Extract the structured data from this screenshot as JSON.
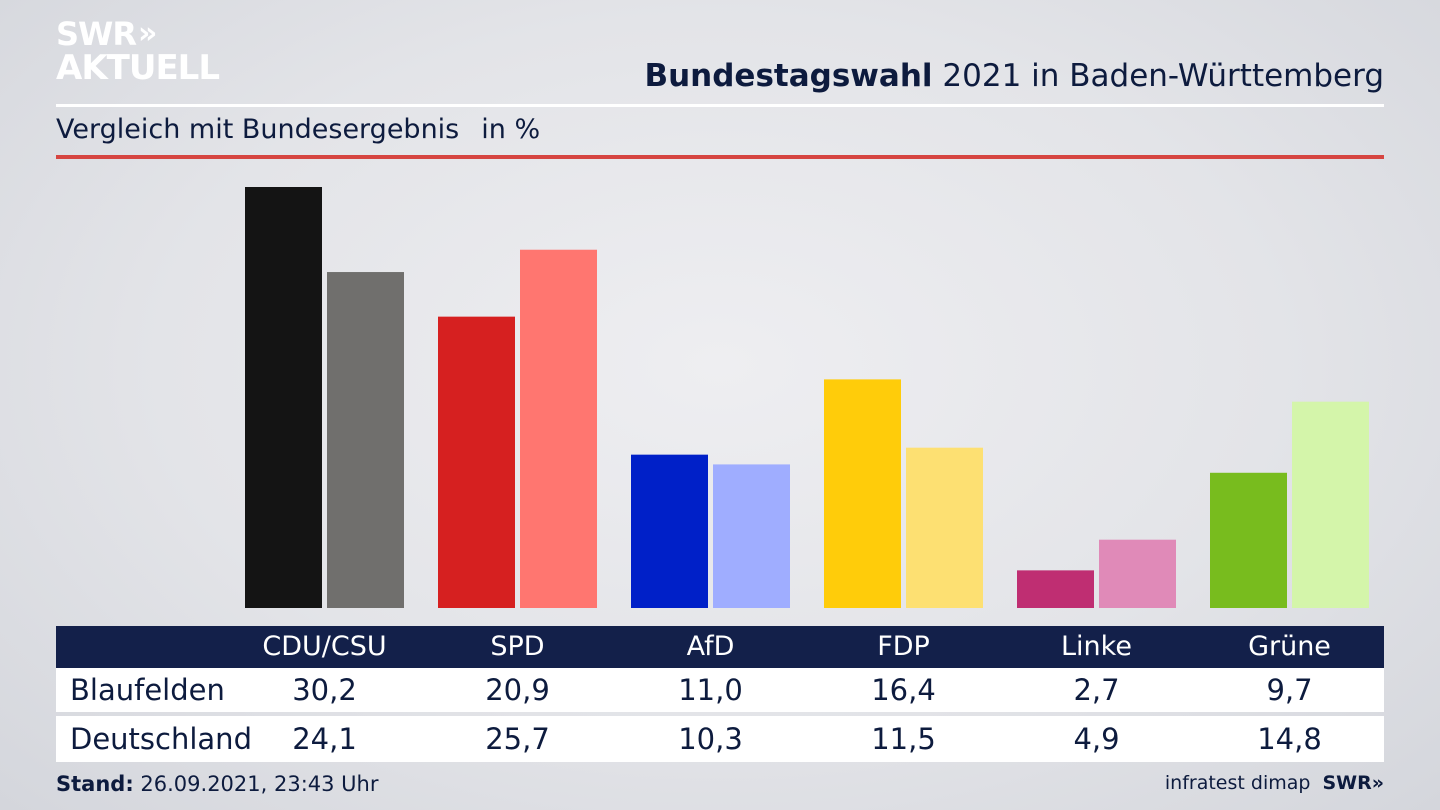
{
  "logo": {
    "line1": "SWR",
    "chevrons": "»",
    "line2": "AKTUELL"
  },
  "header": {
    "title_bold": "Bundestagswahl",
    "title_rest": " 2021 in Baden-Württemberg"
  },
  "subtitle": {
    "text": "Vergleich mit Bundesergebnis",
    "unit": "in %"
  },
  "chart_data": {
    "type": "bar",
    "categories": [
      "CDU/CSU",
      "SPD",
      "AfD",
      "FDP",
      "Linke",
      "Grüne"
    ],
    "series": [
      {
        "name": "Blaufelden",
        "values": [
          30.2,
          20.9,
          11.0,
          16.4,
          2.7,
          9.7
        ]
      },
      {
        "name": "Deutschland",
        "values": [
          24.1,
          25.7,
          10.3,
          11.5,
          4.9,
          14.8
        ]
      }
    ],
    "colors_primary": [
      "#141414",
      "#d62020",
      "#0020c8",
      "#ffcc0a",
      "#bf2e72",
      "#78bc1e"
    ],
    "colors_secondary": [
      "#706f6d",
      "#ff7670",
      "#9fadff",
      "#fde072",
      "#e08ab8",
      "#d4f5aa"
    ],
    "ylim": [
      0,
      30.2
    ],
    "grid": false,
    "legend": "table-below"
  },
  "table": {
    "headers": [
      "CDU/CSU",
      "SPD",
      "AfD",
      "FDP",
      "Linke",
      "Grüne"
    ],
    "rows": [
      {
        "label": "Blaufelden",
        "values": [
          "30,2",
          "20,9",
          "11,0",
          "16,4",
          "2,7",
          "9,7"
        ]
      },
      {
        "label": "Deutschland",
        "values": [
          "24,1",
          "25,7",
          "10,3",
          "11,5",
          "4,9",
          "14,8"
        ]
      }
    ]
  },
  "footer": {
    "stand_label": "Stand:",
    "stand_value": " 26.09.2021, 23:43 Uhr"
  },
  "source": {
    "text": "infratest dimap",
    "brand": "SWR",
    "brand_chevrons": "»"
  }
}
